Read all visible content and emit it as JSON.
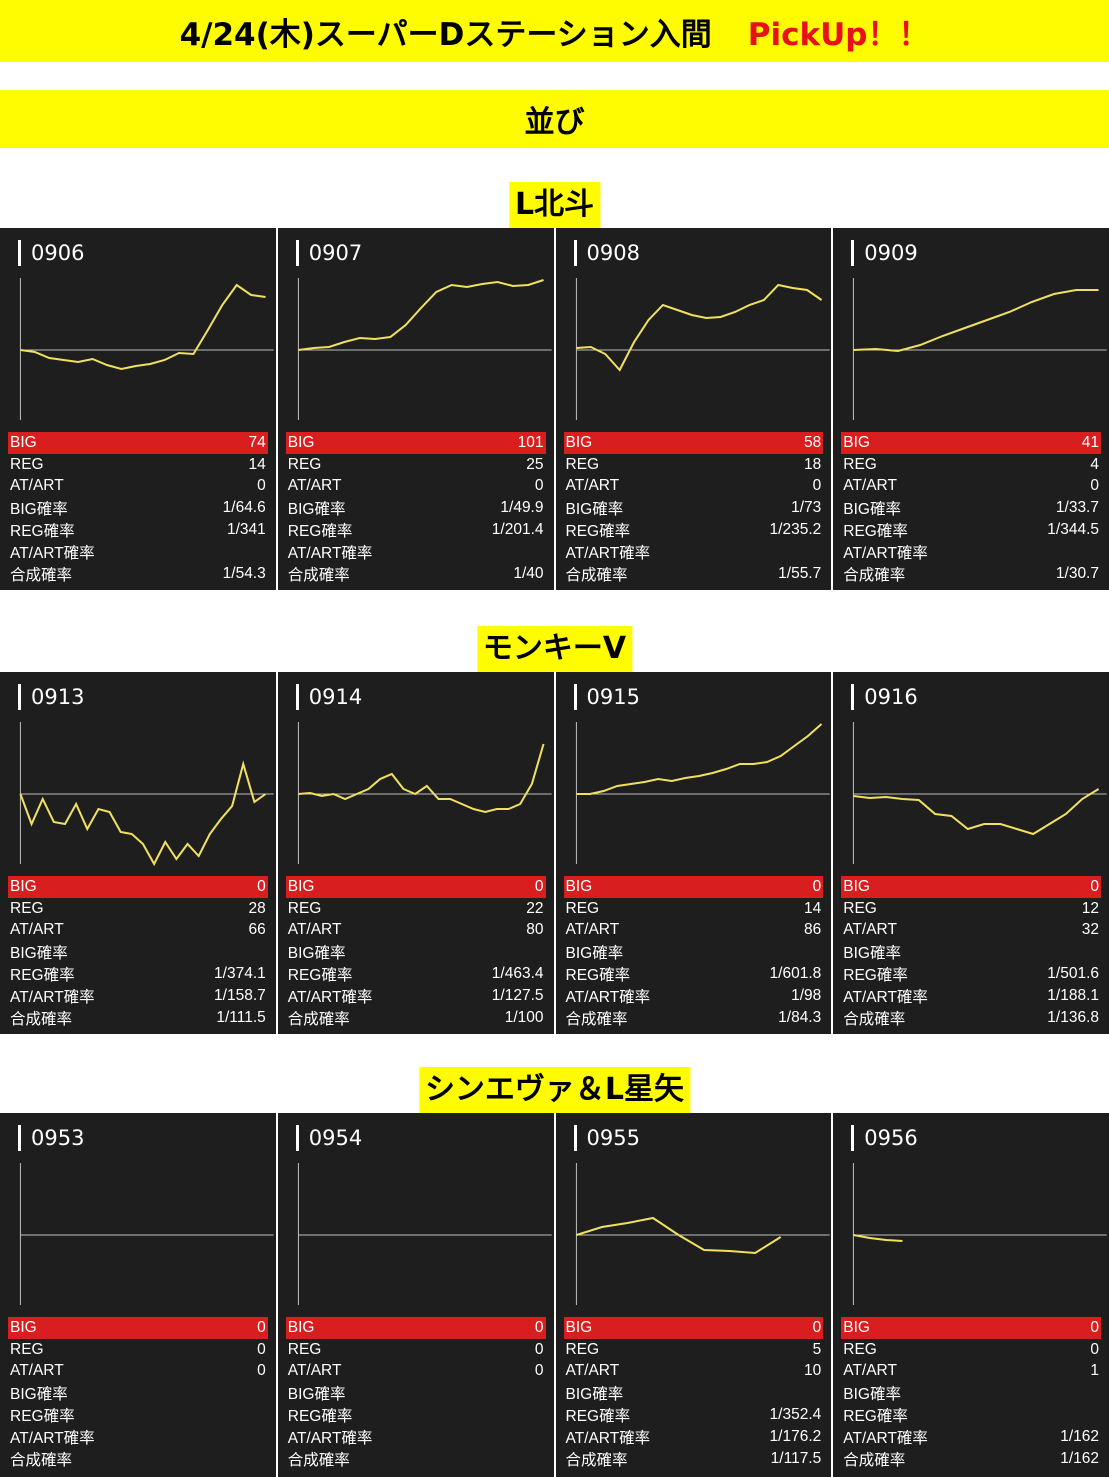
{
  "header": {
    "title": "4/24(木)スーパーDステーション入間",
    "pickup": "PickUp！！",
    "subtitle": "並び"
  },
  "colors": {
    "banner": "#fffc00",
    "pickup": "#e8101a",
    "card_bg": "#1e1e1e",
    "big_bar": "#d81e1e",
    "line": "#f0e060"
  },
  "stat_labels": [
    "BIG",
    "REG",
    "AT/ART",
    "BIG確率",
    "REG確率",
    "AT/ART確率",
    "合成確率"
  ],
  "sections": [
    {
      "name": "L北斗",
      "machines": [
        {
          "number": "0906",
          "stats": [
            "74",
            "14",
            "0",
            "1/64.6",
            "1/341",
            "",
            "1/54.3"
          ],
          "trend": [
            0,
            -2,
            -8,
            -10,
            -12,
            -9,
            -15,
            -19,
            -16,
            -14,
            -10,
            -3,
            -4,
            20,
            45,
            65,
            55,
            53
          ]
        },
        {
          "number": "0907",
          "stats": [
            "101",
            "25",
            "0",
            "1/49.9",
            "1/201.4",
            "",
            "1/40"
          ],
          "trend": [
            0,
            2,
            3,
            8,
            12,
            11,
            13,
            25,
            42,
            58,
            65,
            63,
            66,
            68,
            64,
            65,
            70
          ]
        },
        {
          "number": "0908",
          "stats": [
            "58",
            "18",
            "0",
            "1/73",
            "1/235.2",
            "",
            "1/55.7"
          ],
          "trend": [
            2,
            3,
            -4,
            -20,
            8,
            30,
            45,
            40,
            35,
            32,
            33,
            38,
            45,
            50,
            65,
            62,
            60,
            50
          ]
        },
        {
          "number": "0909",
          "stats": [
            "41",
            "4",
            "0",
            "1/33.7",
            "1/344.5",
            "",
            "1/30.7"
          ],
          "trend": [
            0,
            1,
            -1,
            5,
            14,
            22,
            30,
            38,
            48,
            56,
            60,
            60
          ]
        }
      ]
    },
    {
      "name": "モンキーV",
      "machines": [
        {
          "number": "0913",
          "stats": [
            "0",
            "28",
            "66",
            "",
            "1/374.1",
            "1/158.7",
            "1/111.5"
          ],
          "trend": [
            0,
            -30,
            -5,
            -28,
            -30,
            -10,
            -35,
            -15,
            -18,
            -38,
            -40,
            -50,
            -70,
            -48,
            -65,
            -50,
            -62,
            -40,
            -25,
            -12,
            30,
            -8,
            0
          ]
        },
        {
          "number": "0914",
          "stats": [
            "0",
            "22",
            "80",
            "",
            "1/463.4",
            "1/127.5",
            "1/100"
          ],
          "trend": [
            0,
            1,
            -2,
            0,
            -5,
            0,
            5,
            15,
            20,
            5,
            0,
            8,
            -5,
            -5,
            -10,
            -15,
            -18,
            -15,
            -15,
            -10,
            10,
            50
          ]
        },
        {
          "number": "0915",
          "stats": [
            "0",
            "14",
            "86",
            "",
            "1/601.8",
            "1/98",
            "1/84.3"
          ],
          "trend": [
            0,
            0,
            3,
            8,
            10,
            12,
            15,
            13,
            16,
            18,
            21,
            25,
            30,
            30,
            32,
            38,
            48,
            58,
            70
          ]
        },
        {
          "number": "0916",
          "stats": [
            "0",
            "12",
            "32",
            "",
            "1/501.6",
            "1/188.1",
            "1/136.8"
          ],
          "trend": [
            -2,
            -4,
            -3,
            -5,
            -6,
            -20,
            -22,
            -35,
            -30,
            -30,
            -35,
            -40,
            -30,
            -20,
            -5,
            5
          ]
        }
      ]
    },
    {
      "name": "シンエヴァ＆L星矢",
      "machines": [
        {
          "number": "0953",
          "stats": [
            "0",
            "0",
            "0",
            "",
            "",
            "",
            ""
          ],
          "trend": []
        },
        {
          "number": "0954",
          "stats": [
            "0",
            "0",
            "0",
            "",
            "",
            "",
            ""
          ],
          "trend": []
        },
        {
          "number": "0955",
          "stats": [
            "0",
            "5",
            "10",
            "",
            "1/352.4",
            "1/176.2",
            "1/117.5"
          ],
          "trend": [
            0,
            8,
            12,
            17,
            0,
            -15,
            -16,
            -18,
            -2
          ]
        },
        {
          "number": "0956",
          "stats": [
            "0",
            "0",
            "1",
            "",
            "",
            "1/162",
            "1/162"
          ],
          "trend": [
            0,
            -3,
            -5,
            -6
          ]
        }
      ]
    }
  ]
}
